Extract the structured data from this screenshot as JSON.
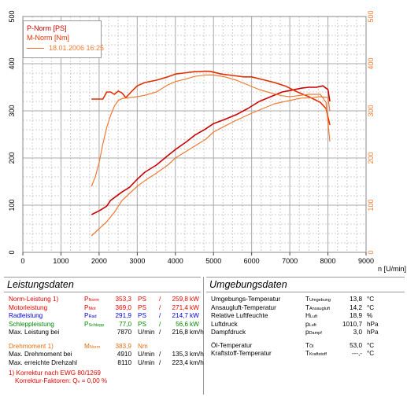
{
  "chart_data": {
    "type": "line",
    "xlabel": "n [U/min]",
    "xlim": [
      0,
      9000
    ],
    "ylim_left": [
      0,
      500
    ],
    "ylim_right": [
      0,
      500
    ],
    "x_ticks": [
      "0",
      "1000",
      "2000",
      "3000",
      "4000",
      "5000",
      "6000",
      "7000",
      "8000",
      "9000"
    ],
    "y_ticks_left": [
      "0",
      "100",
      "200",
      "300",
      "400",
      "500"
    ],
    "y_ticks_right": [
      "0",
      "100",
      "200",
      "300",
      "400",
      "500"
    ],
    "grid": true,
    "legend": [
      "P-Norm [PS]",
      "M-Norm [Nm]",
      "18.01.2006 16:25"
    ],
    "legend_position": "top-left",
    "colors": {
      "p_norm": "#cc0000",
      "m_norm": "#e03000",
      "reference": "#f07a30",
      "axis_right": "#f07a30"
    },
    "series": [
      {
        "name": "P-Norm [PS]",
        "color": "#cc0000",
        "x": [
          1800,
          2000,
          2200,
          2300,
          2500,
          2600,
          2800,
          3000,
          3200,
          3500,
          3800,
          4000,
          4300,
          4500,
          4800,
          5000,
          5300,
          5600,
          5900,
          6200,
          6500,
          6800,
          7000,
          7300,
          7500,
          7700,
          7870,
          8000,
          8050
        ],
        "y": [
          80,
          88,
          98,
          110,
          122,
          128,
          138,
          155,
          170,
          185,
          205,
          218,
          235,
          248,
          262,
          273,
          282,
          292,
          305,
          320,
          330,
          340,
          343,
          348,
          350,
          350,
          353,
          345,
          320
        ]
      },
      {
        "name": "M-Norm [Nm]",
        "color": "#e03000",
        "x": [
          1800,
          2000,
          2100,
          2200,
          2300,
          2400,
          2500,
          2600,
          2700,
          2900,
          3000,
          3200,
          3500,
          3800,
          4000,
          4200,
          4500,
          4800,
          4910,
          5200,
          5500,
          5800,
          6000,
          6300,
          6600,
          6900,
          7200,
          7500,
          7800,
          7950,
          8050
        ],
        "y": [
          325,
          325,
          325,
          340,
          340,
          335,
          342,
          338,
          328,
          345,
          353,
          360,
          365,
          372,
          378,
          380,
          383,
          384,
          383.9,
          378,
          375,
          372,
          372,
          366,
          360,
          352,
          340,
          330,
          318,
          305,
          270
        ]
      },
      {
        "name": "18.01.2006 16:25",
        "color": "#f07a30",
        "x": [
          1800,
          1900,
          2000,
          2100,
          2200,
          2300,
          2400,
          2500,
          2600,
          2800,
          3000,
          3200,
          3500,
          3800,
          4000,
          4300,
          4500,
          4800,
          5000,
          5300,
          5600,
          5900,
          6200,
          6500,
          6800,
          7000,
          7200,
          7500,
          7800,
          7950,
          8050
        ],
        "y": [
          140,
          160,
          190,
          230,
          265,
          290,
          310,
          322,
          326,
          328,
          330,
          333,
          340,
          355,
          362,
          368,
          373,
          376,
          376,
          372,
          365,
          355,
          345,
          338,
          332,
          330,
          332,
          335,
          335,
          318,
          235
        ]
      },
      {
        "name": "",
        "color": "#f07a30",
        "x": [
          1800,
          2000,
          2200,
          2400,
          2600,
          2800,
          3000,
          3200,
          3500,
          3800,
          4000,
          4300,
          4500,
          4800,
          5000,
          5300,
          5600,
          6000,
          6300,
          6600,
          7000,
          7300,
          7600,
          7800,
          8000,
          8050
        ],
        "y": [
          35,
          50,
          65,
          85,
          110,
          125,
          140,
          152,
          168,
          185,
          200,
          215,
          225,
          240,
          255,
          268,
          280,
          295,
          305,
          315,
          322,
          327,
          328,
          330,
          328,
          300
        ]
      }
    ]
  },
  "left_panel": {
    "title": "Leistungsdaten",
    "rows": [
      {
        "label": "Norm-Leistung 1)",
        "sym": "P",
        "sub": "Norm",
        "v1": "353,3",
        "u1": "PS",
        "slash": "/",
        "v2": "259,8",
        "u2": "kW",
        "color": "#e60000"
      },
      {
        "label": "Motorleistung",
        "sym": "P",
        "sub": "Mot",
        "v1": "369,0",
        "u1": "PS",
        "slash": "/",
        "v2": "271,4",
        "u2": "kW",
        "color": "#e60000"
      },
      {
        "label": "Radleistung",
        "sym": "P",
        "sub": "Rad",
        "v1": "291,9",
        "u1": "PS",
        "slash": "/",
        "v2": "214,7",
        "u2": "kW",
        "color": "#0000cc"
      },
      {
        "label": "Schleppleistung",
        "sym": "P",
        "sub": "Schlepp",
        "v1": "77,0",
        "u1": "PS",
        "slash": "/",
        "v2": "56,6",
        "u2": "kW",
        "color": "#008800"
      },
      {
        "label": "Max. Leistung bei",
        "sym": "",
        "sub": "",
        "v1": "7870",
        "u1": "U/min",
        "slash": "/",
        "v2": "216,8",
        "u2": "km/h",
        "color": "#000000"
      }
    ],
    "torque_rows": [
      {
        "label": "Drehmoment 1)",
        "sym": "M",
        "sub": "Norm",
        "v1": "383,9",
        "u1": "Nm",
        "slash": "",
        "v2": "",
        "u2": "",
        "color": "#e07010"
      },
      {
        "label": "Max. Drehmoment bei",
        "sym": "",
        "sub": "",
        "v1": "4910",
        "u1": "U/min",
        "slash": "/",
        "v2": "135,3",
        "u2": "km/h",
        "color": "#000000"
      },
      {
        "label": "Max. erreichte Drehzahl",
        "sym": "",
        "sub": "",
        "v1": "8110",
        "u1": "U/min",
        "slash": "/",
        "v2": "223,4",
        "u2": "km/h",
        "color": "#000000"
      }
    ],
    "footnote1": "1) Korrektur nach EWG 80/1269",
    "footnote2_prefix": "Korrektur-Faktoren: Q",
    "footnote2_sub": "v",
    "footnote2_suffix": " =  0,00 %"
  },
  "right_panel": {
    "title": "Umgebungsdaten",
    "rows": [
      {
        "label": "Umgebungs-Temperatur",
        "sym": "T",
        "sub": "Umgebung",
        "val": "13,8",
        "unit": "°C"
      },
      {
        "label": "Ansaugluft-Temperatur",
        "sym": "T",
        "sub": "Ansaugluft",
        "val": "14,2",
        "unit": "°C"
      },
      {
        "label": "Relative Luftfeuchte",
        "sym": "H",
        "sub": "Luft",
        "val": "18,9",
        "unit": "%"
      },
      {
        "label": "Luftdruck",
        "sym": "p",
        "sub": "Luft",
        "val": "1010,7",
        "unit": "hPa"
      },
      {
        "label": "Dampfdruck",
        "sym": "p",
        "sub": "Dampf",
        "val": "3,0",
        "unit": "hPa"
      }
    ],
    "rows2": [
      {
        "label": "Öl-Temperatur",
        "sym": "T",
        "sub": "Öl",
        "val": "53,0",
        "unit": "°C"
      },
      {
        "label": "Kraftstoff-Temperatur",
        "sym": "T",
        "sub": "Kraftstoff",
        "val": "---,-",
        "unit": "°C"
      }
    ]
  }
}
